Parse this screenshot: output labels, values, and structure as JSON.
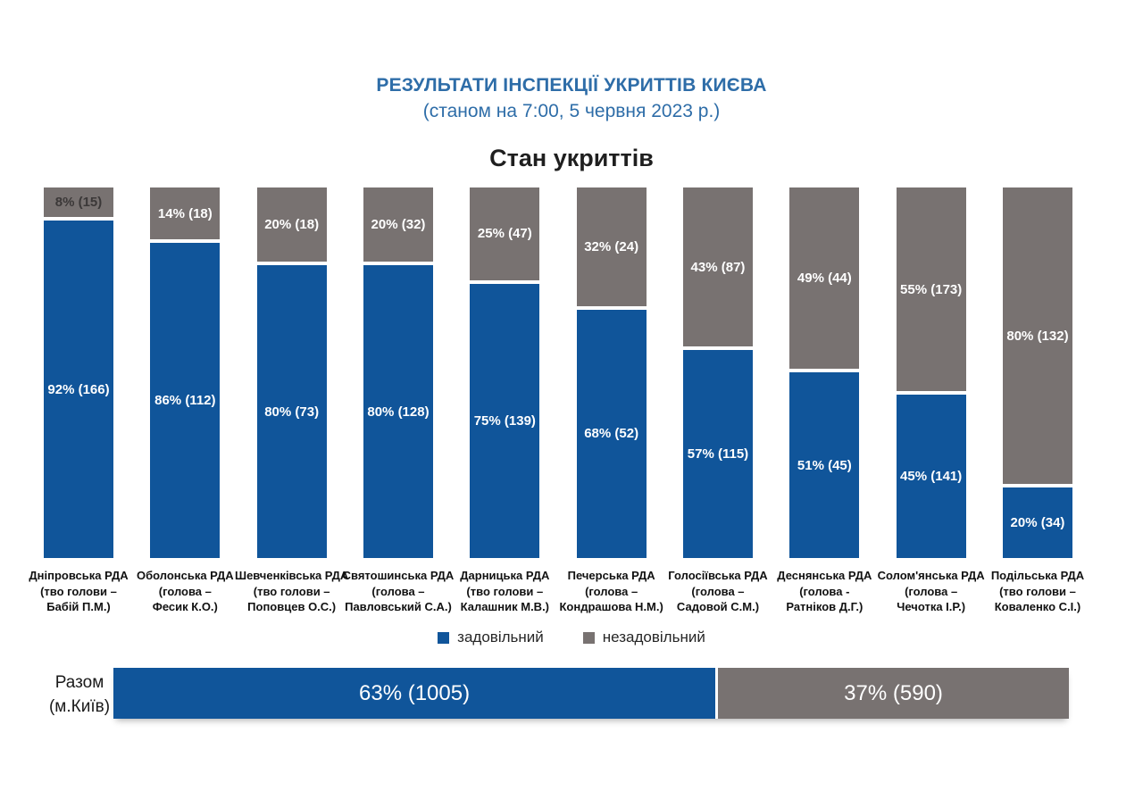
{
  "header": {
    "title": "РЕЗУЛЬТАТИ ІНСПЕКЦІЇ УКРИТТІВ КИЄВА",
    "subtitle": "(станом на 7:00, 5 червня 2023 р.)"
  },
  "chart": {
    "title": "Стан укриттів"
  },
  "legend": {
    "satisfactory": "задовільний",
    "unsatisfactory": "незадовільний"
  },
  "totals": {
    "label_line1": "Разом",
    "label_line2": "(м.Київ)",
    "satisfactory": "63% (1005)",
    "unsatisfactory": "37% (590)"
  },
  "colors": {
    "satisfactory_blue": "#10559A",
    "unsatisfactory_gray": "#787271",
    "title_blue": "#2E6DA8",
    "dark_label": "#3B3838"
  },
  "chart_data": {
    "type": "bar",
    "stacked": true,
    "title": "Стан укриттів",
    "xlabel": "",
    "ylabel": "",
    "ylim": [
      0,
      100
    ],
    "unit": "percent",
    "grid": false,
    "legend_position": "bottom",
    "categories": [
      [
        "Дніпровська РДА",
        "(тво голови –",
        "Бабій П.М.)"
      ],
      [
        "Оболонська РДА",
        "(голова –",
        "Фесик К.О.)"
      ],
      [
        "Шевченківська РДА",
        "(тво голови –",
        "Поповцев О.С.)"
      ],
      [
        "Святошинська РДА",
        "(голова –",
        "Павловський С.А.)"
      ],
      [
        "Дарницька РДА",
        "(тво голови –",
        "Калашник М.В.)"
      ],
      [
        "Печерська РДА",
        "(голова –",
        "Кондрашова Н.М.)"
      ],
      [
        "Голосіївська РДА",
        "(голова –",
        "Садовой С.М.)"
      ],
      [
        "Деснянська РДА",
        "(голова -",
        "Ратніков Д.Г.)"
      ],
      [
        "Солом'янська РДА",
        "(голова –",
        "Чечотка І.Р.)"
      ],
      [
        "Подільська РДА",
        "(тво голови –",
        "Коваленко С.І.)"
      ]
    ],
    "series": [
      {
        "name": "задовільний",
        "color": "#10559A",
        "percent": [
          92,
          86,
          80,
          80,
          75,
          68,
          57,
          51,
          45,
          20
        ],
        "counts": [
          166,
          112,
          73,
          128,
          139,
          52,
          115,
          45,
          141,
          34
        ],
        "labels": [
          "92% (166)",
          "86% (112)",
          "80% (73)",
          "80% (128)",
          "75% (139)",
          "68% (52)",
          "57% (115)",
          "51% (45)",
          "45% (141)",
          "20% (34)"
        ],
        "label_colors": [
          "#FFFFFF",
          "#FFFFFF",
          "#FFFFFF",
          "#FFFFFF",
          "#FFFFFF",
          "#FFFFFF",
          "#FFFFFF",
          "#FFFFFF",
          "#FFFFFF",
          "#FFFFFF"
        ]
      },
      {
        "name": "незадовільний",
        "color": "#787271",
        "percent": [
          8,
          14,
          20,
          20,
          25,
          32,
          43,
          49,
          55,
          80
        ],
        "counts": [
          15,
          18,
          18,
          32,
          47,
          24,
          87,
          44,
          173,
          132
        ],
        "labels": [
          "8% (15)",
          "14% (18)",
          "20% (18)",
          "20% (32)",
          "25% (47)",
          "32% (24)",
          "43% (87)",
          "49% (44)",
          "55% (173)",
          "80% (132)"
        ],
        "label_colors": [
          "#3B3838",
          "#FFFFFF",
          "#FFFFFF",
          "#FFFFFF",
          "#FFFFFF",
          "#FFFFFF",
          "#FFFFFF",
          "#FFFFFF",
          "#FFFFFF",
          "#FFFFFF"
        ]
      }
    ],
    "total": {
      "label": "Разом (м.Київ)",
      "satisfactory_percent": 63,
      "satisfactory_count": 1005,
      "satisfactory_label": "63% (1005)",
      "unsatisfactory_percent": 37,
      "unsatisfactory_count": 590,
      "unsatisfactory_label": "37% (590)"
    }
  }
}
